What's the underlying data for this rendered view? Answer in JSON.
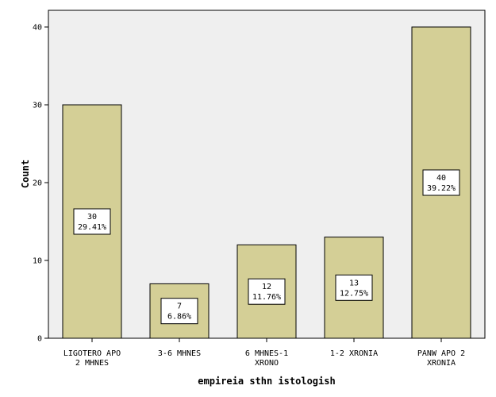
{
  "chart_data": {
    "type": "bar",
    "categories": [
      [
        "LIGOTERO APO",
        "2 MHNES"
      ],
      [
        "3-6 MHNES"
      ],
      [
        "6 MHNES-1",
        "XRONO"
      ],
      [
        "1-2 XRONIA"
      ],
      [
        "PANW APO 2",
        "XRONIA"
      ]
    ],
    "values": [
      30,
      7,
      12,
      13,
      40
    ],
    "percent_labels": [
      "29.41%",
      "6.86%",
      "11.76%",
      "12.75%",
      "39.22%"
    ],
    "xlabel": "empireia sthn istologish",
    "ylabel": "Count",
    "ylim": [
      0,
      42
    ],
    "yticks": [
      0,
      10,
      20,
      30,
      40
    ],
    "grid": false,
    "colors": {
      "plot_background": "#efefef",
      "bar_fill": "#d4cf96",
      "bar_stroke": "#000000",
      "label_box": "#ffffff"
    }
  }
}
